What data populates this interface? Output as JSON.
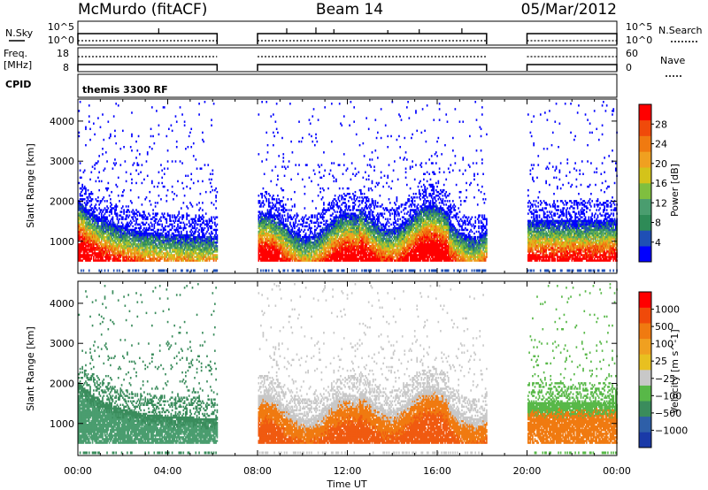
{
  "header": {
    "station": "McMurdo (fitACF)",
    "beam": "Beam 14",
    "date": "05/Mar/2012"
  },
  "top_panels": {
    "nsky_label": "N.Sky",
    "nsky_ticks": [
      "10^5",
      "10^0"
    ],
    "nsearch_label": "N.Search",
    "nsearch_ticks": [
      "10^5",
      "10^0"
    ],
    "freq_label_1": "Freq.",
    "freq_label_2": "[MHz]",
    "freq_ticks": [
      "18",
      "8"
    ],
    "nave_label": "Nave",
    "nave_ticks": [
      "60",
      "0"
    ],
    "cpid_label": "CPID",
    "cpid_text": "themis 3300 RF"
  },
  "colors": {
    "power_scale": [
      "#0000ff",
      "#1f4fb5",
      "#2e8b57",
      "#4a9d6f",
      "#7fbf3f",
      "#d4c31a",
      "#f0a020",
      "#f07a10",
      "#f04a0a",
      "#ff0000"
    ],
    "velocity_scale": [
      "#1a3aa8",
      "#2e5fa8",
      "#3a8c5c",
      "#58b848",
      "#c8c8c8",
      "#e8c020",
      "#f0a020",
      "#f07a10",
      "#f04a0a",
      "#ff0000"
    ]
  },
  "chart_data": [
    {
      "type": "heatmap",
      "name": "power",
      "ylabel": "Slant Range [km]",
      "y_ticks": [
        1000,
        2000,
        3000,
        4000
      ],
      "ylim": [
        200,
        4550
      ],
      "x_ticks": [
        "00:00",
        "04:00",
        "08:00",
        "12:00",
        "16:00",
        "20:00",
        "00:00"
      ],
      "xlim_hours": [
        0,
        24
      ],
      "data_gaps_hours": [
        [
          6.2,
          8.0
        ],
        [
          18.2,
          20.0
        ]
      ],
      "colorbar": {
        "label": "Power [dB]",
        "ticks": [
          4,
          8,
          12,
          16,
          20,
          24,
          28
        ],
        "range": [
          0,
          32
        ]
      }
    },
    {
      "type": "heatmap",
      "name": "velocity",
      "ylabel": "Slant Range [km]",
      "xlabel": "Time UT",
      "y_ticks": [
        1000,
        2000,
        3000,
        4000
      ],
      "ylim": [
        200,
        4550
      ],
      "x_ticks": [
        "00:00",
        "04:00",
        "08:00",
        "12:00",
        "16:00",
        "20:00",
        "00:00"
      ],
      "xlim_hours": [
        0,
        24
      ],
      "data_gaps_hours": [
        [
          6.2,
          8.0
        ],
        [
          18.2,
          20.0
        ]
      ],
      "colorbar": {
        "label": "Velocity [m s^-1]",
        "ticks": [
          "1000",
          "500",
          "100",
          "25",
          "−25",
          "−100",
          "−500",
          "−1000"
        ]
      }
    }
  ]
}
